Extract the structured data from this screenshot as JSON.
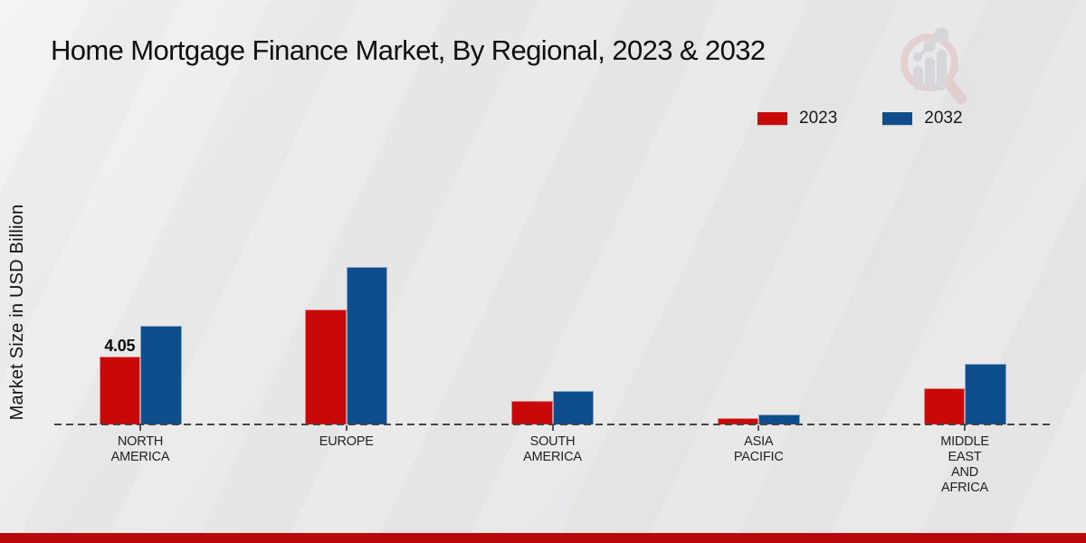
{
  "title": "Home Mortgage Finance Market, By Regional, 2023 & 2032",
  "ylabel": "Market Size in USD Billion",
  "legend": [
    {
      "label": "2023",
      "color": "#c90808"
    },
    {
      "label": "2032",
      "color": "#0f4e8c"
    }
  ],
  "colors": {
    "bar_2023": "#c90808",
    "bar_2032": "#0f4e8c",
    "footer": "#b60808",
    "axis_dash": "#454545",
    "text": "#111111"
  },
  "logo_name": "market-research-future-watermark",
  "chart_data": {
    "type": "bar",
    "title": "Home Mortgage Finance Market, By Regional, 2023 & 2032",
    "xlabel": "",
    "ylabel": "Market Size in USD Billion",
    "categories": [
      "NORTH\nAMERICA",
      "EUROPE",
      "SOUTH\nAMERICA",
      "ASIA\nPACIFIC",
      "MIDDLE\nEAST\nAND\nAFRICA"
    ],
    "series": [
      {
        "name": "2023",
        "color": "#c90808",
        "values": [
          4.05,
          6.85,
          1.4,
          0.38,
          2.15
        ]
      },
      {
        "name": "2032",
        "color": "#0f4e8c",
        "values": [
          5.9,
          9.4,
          2.0,
          0.6,
          3.6
        ]
      }
    ],
    "data_labels": [
      {
        "category_index": 0,
        "series_index": 0,
        "text": "4.05"
      }
    ],
    "ylim": [
      0,
      10
    ],
    "y_axis_ticks_visible": false,
    "grid": false,
    "baseline_style": "dashed",
    "legend_position": "top-right"
  }
}
